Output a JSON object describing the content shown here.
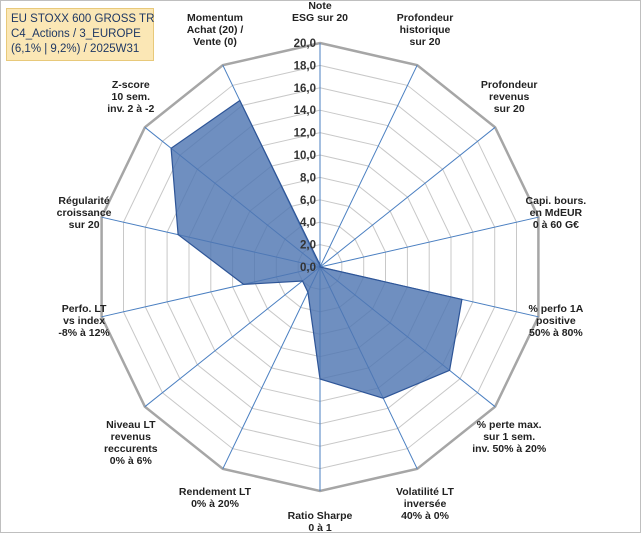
{
  "title": {
    "line1": "EU STOXX 600 GROSS TR",
    "line2": "C4_Actions / 3_EUROPE",
    "line3": "(6,1% | 9,2%) / 2025W31"
  },
  "chart_data": {
    "type": "radar",
    "rmin": 0,
    "rmax": 20,
    "tick_step": 2,
    "grid": true,
    "ticks": [
      "0,0",
      "2,0",
      "4,0",
      "6,0",
      "8,0",
      "10,0",
      "12,0",
      "14,0",
      "16,0",
      "18,0",
      "20,0"
    ],
    "axes": [
      [
        "Note",
        "ESG sur 20"
      ],
      [
        "Profondeur",
        "historique",
        "sur 20"
      ],
      [
        "Profondeur",
        "revenus",
        "sur 20"
      ],
      [
        "Capi. bours.",
        "en MdEUR",
        "0 à 60 G€"
      ],
      [
        "% perfo 1A",
        "positive",
        "50% à 80%"
      ],
      [
        "% perte max.",
        "sur 1 sem.",
        "inv. 50% à 20%"
      ],
      [
        "Volatilité LT",
        "inversée",
        "40% à 0%"
      ],
      [
        "Ratio Sharpe",
        "0 à 1"
      ],
      [
        "Rendement LT",
        "0% à 20%"
      ],
      [
        "Niveau LT",
        "revenus",
        "reccurents",
        "0% à 6%"
      ],
      [
        "Perfo. LT",
        "vs index",
        "-8% à 12%"
      ],
      [
        "Régularité",
        "croissance",
        "sur 20"
      ],
      [
        "Z-score",
        "10 sem.",
        "inv. 2 à -2"
      ],
      [
        "Momentum",
        "Achat (20) /",
        "Vente (0)"
      ]
    ],
    "values": [
      0.2,
      0,
      0,
      0,
      13.0,
      14.8,
      13.0,
      10.0,
      2.5,
      2.0,
      7.0,
      13.0,
      17.0,
      16.5
    ],
    "fill_color": "#4f76b2",
    "line_color": "#2e5597",
    "axis_color": "#4a7fc1",
    "grid_color": "#c8c8c8"
  }
}
